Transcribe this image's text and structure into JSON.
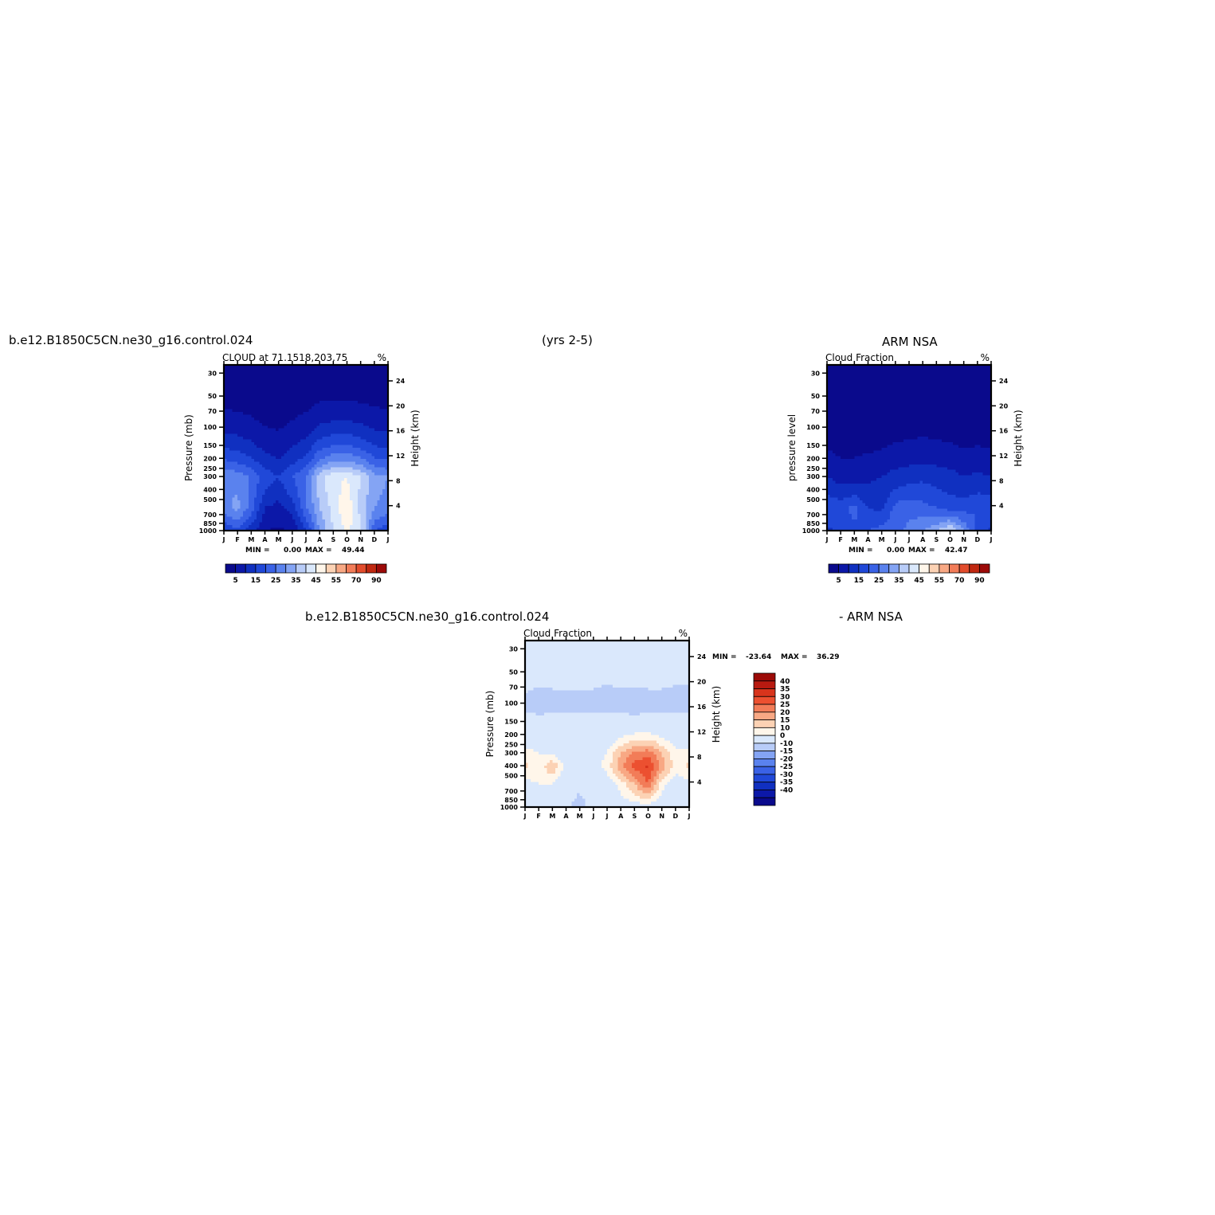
{
  "header": {
    "case_name": "b.e12.B1850C5CN.ne30_g16.control.024",
    "years": "(yrs 2-5)",
    "obs_name": "ARM NSA",
    "diff_case_name": "b.e12.B1850C5CN.ne30_g16.control.024",
    "diff_obs_name": "- ARM NSA"
  },
  "chart_data": [
    {
      "id": "model",
      "type": "heatmap",
      "title": "CLOUD at 71.1518,203.75",
      "units": "%",
      "xlabel": "",
      "ylabel": "Pressure (mb)",
      "ylabel_right": "Height (km)",
      "x_ticks": [
        "J",
        "F",
        "M",
        "A",
        "M",
        "J",
        "J",
        "A",
        "S",
        "O",
        "N",
        "D",
        "J"
      ],
      "y_ticks": [
        30,
        50,
        70,
        100,
        150,
        200,
        250,
        300,
        400,
        500,
        700,
        850,
        1000
      ],
      "y_ticks_right": [
        24,
        20,
        16,
        12,
        8,
        4
      ],
      "ylim": [
        1000,
        25
      ],
      "stats": {
        "min_label": "MIN =",
        "min": "0.00",
        "max_label": "MAX =",
        "max": "49.44"
      },
      "colorbar": {
        "orientation": "horizontal",
        "colors": [
          "#0a0a8c",
          "#0c18a8",
          "#1030c0",
          "#2048d8",
          "#3a62e6",
          "#5a82ee",
          "#84a4f4",
          "#b8ccf8",
          "#dae8fc",
          "#fff6ea",
          "#fcd2b4",
          "#f8a884",
          "#f27c58",
          "#e24c2c",
          "#c02810",
          "#9c0a08"
        ],
        "labels": [
          "5",
          "15",
          "25",
          "35",
          "45",
          "55",
          "70",
          "90"
        ]
      },
      "grid": false,
      "y": [
        30,
        300,
        600,
        1000
      ],
      "values": [
        [
          1.1,
          0.9,
          0.8,
          0.7,
          0.9,
          1.2,
          1.4,
          1.3,
          1.0,
          0.9,
          1.0,
          1.1,
          1.1
        ],
        [
          30,
          28,
          24,
          18,
          15,
          20,
          25,
          38,
          44,
          45,
          40,
          32,
          30
        ],
        [
          28,
          32,
          22,
          10,
          8,
          12,
          24,
          35,
          42,
          49,
          38,
          30,
          28
        ],
        [
          15,
          18,
          12,
          5,
          4,
          6,
          14,
          30,
          40,
          46,
          42,
          20,
          15
        ]
      ]
    },
    {
      "id": "obs",
      "type": "heatmap",
      "title": "Cloud Fraction",
      "units": "%",
      "xlabel": "",
      "ylabel": "pressure level",
      "ylabel_right": "Height (km)",
      "x_ticks": [
        "J",
        "F",
        "M",
        "A",
        "M",
        "J",
        "J",
        "A",
        "S",
        "O",
        "N",
        "D",
        "J"
      ],
      "y_ticks": [
        30,
        50,
        70,
        100,
        150,
        200,
        250,
        300,
        400,
        500,
        700,
        850,
        1000
      ],
      "y_ticks_right": [
        24,
        20,
        16,
        12,
        8,
        4
      ],
      "ylim": [
        1000,
        25
      ],
      "stats": {
        "min_label": "MIN =",
        "min": "0.00",
        "max_label": "MAX =",
        "max": "42.47"
      },
      "colorbar": {
        "orientation": "horizontal",
        "colors": [
          "#0a0a8c",
          "#0c18a8",
          "#1030c0",
          "#2048d8",
          "#3a62e6",
          "#5a82ee",
          "#84a4f4",
          "#b8ccf8",
          "#dae8fc",
          "#fff6ea",
          "#fcd2b4",
          "#f8a884",
          "#f27c58",
          "#e24c2c",
          "#c02810",
          "#9c0a08"
        ],
        "labels": [
          "5",
          "15",
          "25",
          "35",
          "45",
          "55",
          "70",
          "90"
        ]
      },
      "grid": false,
      "y": [
        30,
        300,
        600,
        1000
      ],
      "values": [
        [
          0.1,
          0.1,
          0.1,
          0.1,
          0.1,
          0.1,
          0.1,
          0.1,
          0.1,
          0.1,
          0.1,
          0.1,
          0.1
        ],
        [
          10,
          8,
          8,
          9,
          10,
          12,
          13,
          14,
          13,
          12,
          10,
          11,
          10
        ],
        [
          20,
          18,
          22,
          15,
          14,
          22,
          24,
          22,
          20,
          18,
          18,
          20,
          20
        ],
        [
          14,
          16,
          18,
          20,
          22,
          24,
          26,
          30,
          34,
          42,
          30,
          18,
          14
        ]
      ]
    },
    {
      "id": "diff",
      "type": "heatmap",
      "title": "Cloud Fraction",
      "units": "%",
      "xlabel": "",
      "ylabel": "Pressure (mb)",
      "ylabel_right": "Height (km)",
      "x_ticks": [
        "J",
        "F",
        "M",
        "A",
        "M",
        "J",
        "J",
        "A",
        "S",
        "O",
        "N",
        "D",
        "J"
      ],
      "y_ticks": [
        30,
        50,
        70,
        100,
        150,
        200,
        250,
        300,
        400,
        500,
        700,
        850,
        1000
      ],
      "y_ticks_right": [
        24,
        20,
        16,
        12,
        8,
        4
      ],
      "ylim": [
        1000,
        25
      ],
      "stats": {
        "min_label": "MIN =",
        "min": "-23.64",
        "max_label": "MAX =",
        "max": "36.29"
      },
      "colorbar": {
        "orientation": "vertical",
        "colors": [
          "#9c0a08",
          "#b81a10",
          "#d8341c",
          "#ec5030",
          "#f27c58",
          "#f8a884",
          "#fcd2b4",
          "#fff6ea",
          "#dae8fc",
          "#b8ccf8",
          "#84a4f4",
          "#5a82ee",
          "#3a62e6",
          "#2048d8",
          "#1030c0",
          "#0c18a8",
          "#0a0a8c"
        ],
        "labels": [
          "40",
          "35",
          "30",
          "25",
          "20",
          "15",
          "10",
          "0",
          "-10",
          "-15",
          "-20",
          "-25",
          "-30",
          "-35",
          "-40"
        ]
      },
      "grid": false,
      "y": [
        30,
        100,
        150,
        300,
        400,
        600,
        1000
      ],
      "values": [
        [
          5,
          5,
          5,
          5,
          5,
          5,
          3,
          5,
          5,
          5,
          5,
          2,
          2
        ],
        [
          -2,
          -4,
          -3,
          -3,
          -3,
          -3,
          -3,
          -3,
          -4,
          -3,
          -3,
          -2,
          -2
        ],
        [
          3,
          3,
          3,
          3,
          3,
          3,
          3,
          3,
          3,
          3,
          3,
          3,
          3
        ],
        [
          12,
          10,
          8,
          6,
          6,
          7,
          10,
          20,
          26,
          28,
          20,
          12,
          12
        ],
        [
          16,
          12,
          20,
          8,
          6,
          8,
          12,
          24,
          32,
          36,
          24,
          12,
          16
        ],
        [
          8,
          10,
          10,
          4,
          2,
          4,
          6,
          12,
          20,
          30,
          12,
          6,
          8
        ],
        [
          4,
          10,
          6,
          2,
          -4,
          4,
          8,
          6,
          6,
          6,
          4,
          4,
          4
        ]
      ]
    }
  ]
}
